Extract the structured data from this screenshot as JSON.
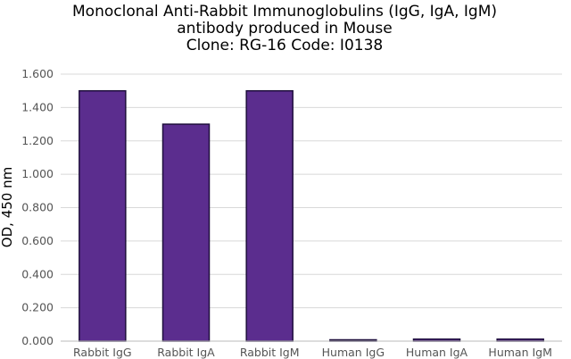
{
  "chart_data": {
    "type": "bar",
    "title_lines": [
      "Monoclonal Anti-Rabbit Immunoglobulins (IgG, IgA, IgM)",
      "antibody produced in Mouse",
      "Clone: RG-16  Code: I0138"
    ],
    "xlabel": "",
    "ylabel": "OD, 450 nm",
    "categories": [
      "Rabbit IgG",
      "Rabbit IgA",
      "Rabbit IgM",
      "Human IgG",
      "Human IgA",
      "Human IgM"
    ],
    "values": [
      1.5,
      1.3,
      1.5,
      0.003,
      0.012,
      0.012
    ],
    "ylim": [
      0,
      1.6
    ],
    "yticks": [
      "0.000",
      "0.200",
      "0.400",
      "0.600",
      "0.800",
      "1.000",
      "1.200",
      "1.400",
      "1.600"
    ],
    "grid": true,
    "legend": "none",
    "colors": {
      "bar": "#5b2d8e",
      "bar_edge": "#1e0f3c",
      "grid": "#d8d8d8",
      "axis": "#bbbbbb"
    }
  }
}
